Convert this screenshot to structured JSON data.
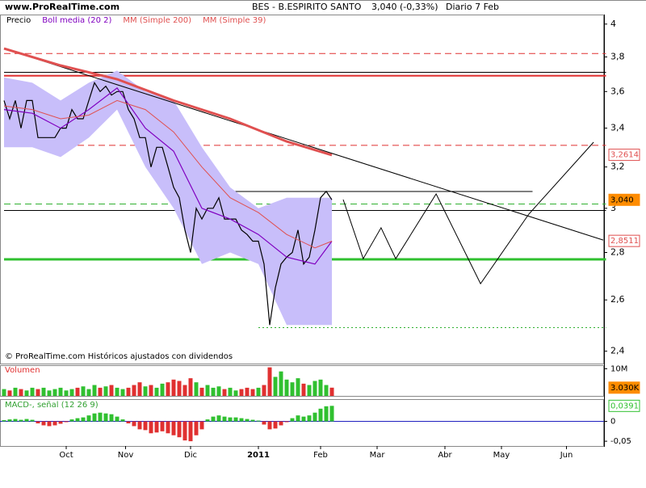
{
  "chart_data": {
    "type": "line",
    "site": "www.ProRealTime.com",
    "title": "BES - B.ESPIRITO SANTO",
    "quote": "3,040 (-0,33%)",
    "period": "Diario  7 Feb",
    "copyright": "© ProRealTime.com Históricos ajustados con dividendos",
    "log": true,
    "xlim": [
      0,
      213
    ],
    "ylim": [
      2.354,
      4.06
    ],
    "xticks": [
      {
        "value": 22,
        "label": "Oct"
      },
      {
        "value": 43,
        "label": "Nov"
      },
      {
        "value": 66,
        "label": "Dic"
      },
      {
        "value": 90,
        "label": "2011"
      },
      {
        "value": 112,
        "label": "Feb"
      },
      {
        "value": 132,
        "label": "Mar"
      },
      {
        "value": 156,
        "label": "Abr"
      },
      {
        "value": 176,
        "label": "May"
      },
      {
        "value": 199,
        "label": "Jun"
      }
    ],
    "yticks": [
      4,
      {
        "value": 3.8,
        "label": "3,8"
      },
      {
        "value": 3.6,
        "label": "3,6"
      },
      {
        "value": 3.4,
        "label": "3,4"
      },
      {
        "value": 3.2,
        "label": "3,2"
      },
      3,
      {
        "value": 2.8,
        "label": "2,8"
      },
      {
        "value": 2.6,
        "label": "2,6"
      },
      {
        "value": 2.4,
        "label": "2,4"
      }
    ],
    "series": [
      {
        "name": "Precio",
        "color": "#000000",
        "x": [
          0,
          2,
          4,
          6,
          8,
          10,
          12,
          14,
          16,
          18,
          20,
          22,
          24,
          26,
          28,
          30,
          32,
          34,
          36,
          38,
          40,
          42,
          44,
          46,
          48,
          50,
          52,
          54,
          56,
          58,
          60,
          62,
          64,
          66,
          68,
          70,
          72,
          74,
          76,
          78,
          80,
          82,
          84,
          86,
          88,
          90,
          92,
          94,
          96,
          98,
          100,
          102,
          104,
          106,
          108,
          110,
          112,
          114,
          116
        ],
        "values": [
          3.55,
          3.45,
          3.55,
          3.4,
          3.55,
          3.55,
          3.35,
          3.35,
          3.35,
          3.35,
          3.4,
          3.4,
          3.5,
          3.45,
          3.45,
          3.55,
          3.65,
          3.6,
          3.63,
          3.58,
          3.6,
          3.6,
          3.5,
          3.45,
          3.35,
          3.35,
          3.2,
          3.3,
          3.3,
          3.2,
          3.1,
          3.05,
          2.9,
          2.8,
          3.0,
          2.95,
          3.0,
          3.0,
          3.05,
          2.95,
          2.95,
          2.95,
          2.9,
          2.88,
          2.85,
          2.85,
          2.75,
          2.5,
          2.65,
          2.75,
          2.78,
          2.8,
          2.9,
          2.75,
          2.78,
          2.9,
          3.05,
          3.08,
          3.04
        ]
      },
      {
        "name": "Boll media (20 2)",
        "color": "#8000c0",
        "band_color": "#c8befa",
        "x": [
          0,
          10,
          20,
          30,
          40,
          50,
          60,
          70,
          80,
          90,
          100,
          110,
          116
        ],
        "values": [
          3.5,
          3.48,
          3.4,
          3.5,
          3.62,
          3.4,
          3.28,
          3.0,
          2.95,
          2.88,
          2.78,
          2.75,
          2.85
        ],
        "upper": [
          3.68,
          3.65,
          3.55,
          3.65,
          3.72,
          3.6,
          3.55,
          3.3,
          3.1,
          3.0,
          3.05,
          3.05,
          3.05
        ],
        "lower": [
          3.3,
          3.3,
          3.25,
          3.35,
          3.5,
          3.2,
          3.0,
          2.75,
          2.8,
          2.75,
          2.5,
          2.5,
          2.5
        ]
      },
      {
        "name": "MM (Simple 200)",
        "color": "#e05050",
        "width": 3,
        "x": [
          0,
          20,
          40,
          60,
          80,
          100,
          116
        ],
        "values": [
          3.85,
          3.75,
          3.67,
          3.55,
          3.45,
          3.33,
          3.26
        ]
      },
      {
        "name": "MM (Simple 39)",
        "color": "#e05050",
        "width": 1,
        "x": [
          0,
          10,
          20,
          30,
          40,
          50,
          60,
          70,
          80,
          90,
          100,
          110,
          116
        ],
        "values": [
          3.52,
          3.5,
          3.45,
          3.47,
          3.55,
          3.5,
          3.38,
          3.2,
          3.05,
          2.98,
          2.88,
          2.82,
          2.85
        ]
      }
    ],
    "lines": [
      {
        "color": "#000000",
        "x": [
          0,
          212
        ],
        "values": [
          3.85,
          2.855
        ]
      },
      {
        "color": "#000000",
        "x": [
          120,
          127.1,
          133.4,
          138.6,
          152.9,
          168.6,
          185.7,
          208.6
        ],
        "values": [
          3.041,
          2.773,
          2.91,
          2.773,
          3.068,
          2.667,
          2.973,
          3.326
        ]
      }
    ],
    "levels": [
      {
        "value": 3.82,
        "color": "#e03030",
        "style": "dashed",
        "width": 1,
        "x": [
          0,
          213
        ]
      },
      {
        "value": 3.71,
        "color": "#000000",
        "style": "solid",
        "width": 1,
        "x": [
          0,
          213
        ]
      },
      {
        "value": 3.69,
        "color": "#e03030",
        "style": "solid",
        "width": 2,
        "x": [
          0,
          213
        ]
      },
      {
        "value": 3.31,
        "color": "#e03030",
        "style": "dashed",
        "width": 1,
        "x": [
          0,
          213
        ]
      },
      {
        "value": 3.08,
        "color": "#000000",
        "style": "solid",
        "width": 1,
        "x": [
          61,
          187
        ]
      },
      {
        "value": 3.02,
        "color": "#30b030",
        "style": "dashed",
        "width": 1,
        "x": [
          0,
          213
        ]
      },
      {
        "value": 2.99,
        "color": "#000000",
        "style": "solid",
        "width": 1,
        "x": [
          0,
          213
        ]
      },
      {
        "value": 2.77,
        "color": "#30c030",
        "style": "solid",
        "width": 3,
        "x": [
          0,
          213
        ]
      },
      {
        "value": 2.49,
        "color": "#30b030",
        "style": "dotted",
        "width": 1,
        "x": [
          90,
          213
        ]
      }
    ],
    "price_labels": [
      {
        "value": 3.2614,
        "label": "3,2614",
        "color": "#e05050"
      },
      {
        "value": 3.04,
        "label": "3,040",
        "color": "#ff8c00"
      },
      {
        "value": 2.8511,
        "label": "2,8511",
        "color": "#e05050"
      }
    ],
    "volume": {
      "title": "Volumen",
      "ylim": [
        0,
        11
      ],
      "yticks": [
        {
          "value": 10,
          "label": "10M"
        }
      ],
      "up_color": "#30c030",
      "down_color": "#e03030",
      "values": [
        2.5,
        2,
        3,
        2.5,
        2,
        3,
        2.5,
        3,
        2,
        2.5,
        3,
        2,
        2.5,
        3,
        3.5,
        2.5,
        4,
        3,
        3.5,
        4,
        3,
        2.5,
        3,
        4,
        5,
        3.5,
        4,
        3,
        4.5,
        5,
        6,
        5.5,
        4,
        6.5,
        5,
        3,
        4,
        3,
        3.5,
        2.5,
        3,
        2,
        2.5,
        3,
        2.5,
        3,
        4,
        10.5,
        7,
        9,
        6,
        5,
        6.5,
        4.5,
        4,
        5.5,
        6,
        4,
        3.03
      ],
      "last": {
        "value": 3.03,
        "label": "3.030K",
        "color": "#ff8c00"
      }
    },
    "macd": {
      "title": "MACD-, señal (12 26 9)",
      "ylim": [
        -0.062,
        0.054
      ],
      "yticks": [
        0,
        {
          "value": -0.05,
          "label": "-0,05"
        }
      ],
      "up_color": "#30c030",
      "down_color": "#e03030",
      "zero_color": "#2020c0",
      "values": [
        0.003,
        0.005,
        0.006,
        0.004,
        0.006,
        0.004,
        -0.005,
        -0.01,
        -0.012,
        -0.01,
        -0.006,
        -0.002,
        0.005,
        0.008,
        0.01,
        0.015,
        0.02,
        0.022,
        0.02,
        0.018,
        0.012,
        0.005,
        -0.005,
        -0.012,
        -0.02,
        -0.022,
        -0.03,
        -0.028,
        -0.025,
        -0.03,
        -0.035,
        -0.04,
        -0.048,
        -0.05,
        -0.035,
        -0.02,
        0.005,
        0.012,
        0.015,
        0.012,
        0.01,
        0.01,
        0.008,
        0.006,
        0.004,
        0.002,
        -0.008,
        -0.02,
        -0.018,
        -0.01,
        -0.002,
        0.008,
        0.015,
        0.012,
        0.015,
        0.022,
        0.032,
        0.038,
        0.0391
      ],
      "last": {
        "value": 0.0391,
        "label": "0,0391",
        "color": "#30c030"
      }
    }
  }
}
